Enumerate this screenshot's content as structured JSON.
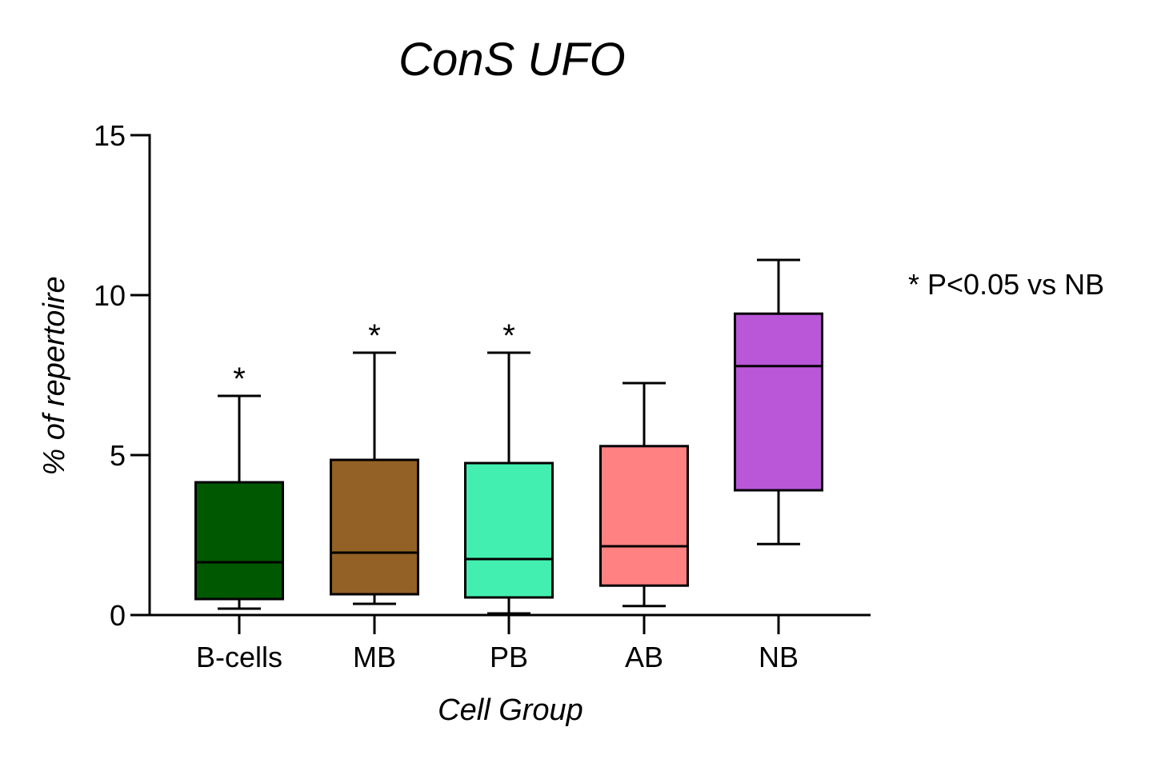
{
  "chart_data": {
    "type": "box",
    "title": "ConS UFO",
    "xlabel": "Cell Group",
    "ylabel": "% of repertoire",
    "ylim": [
      0,
      15
    ],
    "yticks": [
      0,
      5,
      10,
      15
    ],
    "grid": false,
    "annotation": "* P<0.05 vs NB",
    "categories": [
      "B-cells",
      "MB",
      "PB",
      "AB",
      "NB"
    ],
    "boxes": [
      {
        "category": "B-cells",
        "min": 0.2,
        "q1": 0.5,
        "median": 1.65,
        "q3": 4.15,
        "max": 6.85,
        "color": "#005800",
        "significant": true
      },
      {
        "category": "MB",
        "min": 0.35,
        "q1": 0.65,
        "median": 1.95,
        "q3": 4.85,
        "max": 8.2,
        "color": "#936125",
        "significant": true
      },
      {
        "category": "PB",
        "min": 0.05,
        "q1": 0.55,
        "median": 1.75,
        "q3": 4.75,
        "max": 8.2,
        "color": "#43efb0",
        "significant": true
      },
      {
        "category": "AB",
        "min": 0.28,
        "q1": 0.92,
        "median": 2.15,
        "q3": 5.28,
        "max": 7.25,
        "color": "#ff8181",
        "significant": false
      },
      {
        "category": "NB",
        "min": 2.22,
        "q1": 3.9,
        "median": 7.78,
        "q3": 9.42,
        "max": 11.1,
        "color": "#b957d8",
        "significant": false
      }
    ],
    "significance_marker": "*"
  }
}
